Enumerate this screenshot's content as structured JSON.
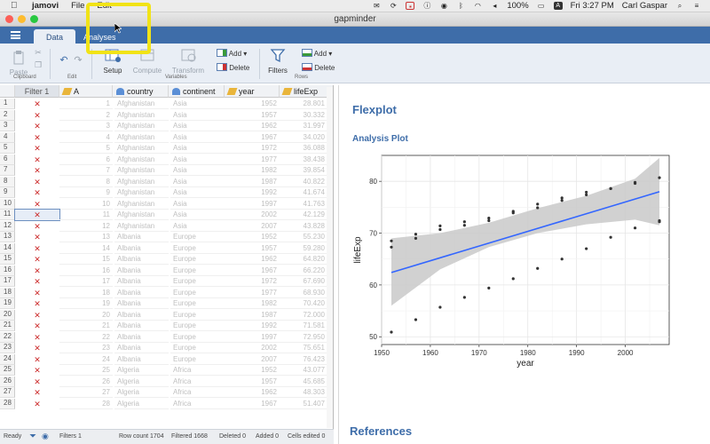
{
  "menubar": {
    "app": "jamovi",
    "items": [
      "File",
      "Edit"
    ],
    "battery": "100%",
    "clock": "Fri 3:27 PM",
    "user": "Carl Gaspar"
  },
  "window": {
    "title": "gapminder"
  },
  "tabs": [
    {
      "label": "Data",
      "active": true
    },
    {
      "label": "Analyses",
      "active": false
    }
  ],
  "ribbon": {
    "paste": "Paste",
    "clipboard_group": "Clipboard",
    "edit_group": "Edit",
    "setup": "Setup",
    "compute": "Compute",
    "transform": "Transform",
    "add": "Add",
    "delete": "Delete",
    "variables_group": "Variables",
    "filters": "Filters",
    "rows_add": "Add",
    "rows_delete": "Delete",
    "rows_group": "Rows"
  },
  "sheet": {
    "columns": [
      "Filter 1",
      "A",
      "country",
      "continent",
      "year",
      "lifeExp"
    ],
    "rows": [
      {
        "n": "1",
        "a": "1",
        "country": "Afghanistan",
        "continent": "Asia",
        "year": "1952",
        "life": "28.801"
      },
      {
        "n": "2",
        "a": "2",
        "country": "Afghanistan",
        "continent": "Asia",
        "year": "1957",
        "life": "30.332"
      },
      {
        "n": "3",
        "a": "3",
        "country": "Afghanistan",
        "continent": "Asia",
        "year": "1962",
        "life": "31.997"
      },
      {
        "n": "4",
        "a": "4",
        "country": "Afghanistan",
        "continent": "Asia",
        "year": "1967",
        "life": "34.020"
      },
      {
        "n": "5",
        "a": "5",
        "country": "Afghanistan",
        "continent": "Asia",
        "year": "1972",
        "life": "36.088"
      },
      {
        "n": "6",
        "a": "6",
        "country": "Afghanistan",
        "continent": "Asia",
        "year": "1977",
        "life": "38.438"
      },
      {
        "n": "7",
        "a": "7",
        "country": "Afghanistan",
        "continent": "Asia",
        "year": "1982",
        "life": "39.854"
      },
      {
        "n": "8",
        "a": "8",
        "country": "Afghanistan",
        "continent": "Asia",
        "year": "1987",
        "life": "40.822"
      },
      {
        "n": "9",
        "a": "9",
        "country": "Afghanistan",
        "continent": "Asia",
        "year": "1992",
        "life": "41.674"
      },
      {
        "n": "10",
        "a": "10",
        "country": "Afghanistan",
        "continent": "Asia",
        "year": "1997",
        "life": "41.763"
      },
      {
        "n": "11",
        "a": "11",
        "country": "Afghanistan",
        "continent": "Asia",
        "year": "2002",
        "life": "42.129"
      },
      {
        "n": "12",
        "a": "12",
        "country": "Afghanistan",
        "continent": "Asia",
        "year": "2007",
        "life": "43.828"
      },
      {
        "n": "13",
        "a": "13",
        "country": "Albania",
        "continent": "Europe",
        "year": "1952",
        "life": "55.230"
      },
      {
        "n": "14",
        "a": "14",
        "country": "Albania",
        "continent": "Europe",
        "year": "1957",
        "life": "59.280"
      },
      {
        "n": "15",
        "a": "15",
        "country": "Albania",
        "continent": "Europe",
        "year": "1962",
        "life": "64.820"
      },
      {
        "n": "16",
        "a": "16",
        "country": "Albania",
        "continent": "Europe",
        "year": "1967",
        "life": "66.220"
      },
      {
        "n": "17",
        "a": "17",
        "country": "Albania",
        "continent": "Europe",
        "year": "1972",
        "life": "67.690"
      },
      {
        "n": "18",
        "a": "18",
        "country": "Albania",
        "continent": "Europe",
        "year": "1977",
        "life": "68.930"
      },
      {
        "n": "19",
        "a": "19",
        "country": "Albania",
        "continent": "Europe",
        "year": "1982",
        "life": "70.420"
      },
      {
        "n": "20",
        "a": "20",
        "country": "Albania",
        "continent": "Europe",
        "year": "1987",
        "life": "72.000"
      },
      {
        "n": "21",
        "a": "21",
        "country": "Albania",
        "continent": "Europe",
        "year": "1992",
        "life": "71.581"
      },
      {
        "n": "22",
        "a": "22",
        "country": "Albania",
        "continent": "Europe",
        "year": "1997",
        "life": "72.950"
      },
      {
        "n": "23",
        "a": "23",
        "country": "Albania",
        "continent": "Europe",
        "year": "2002",
        "life": "75.651"
      },
      {
        "n": "24",
        "a": "24",
        "country": "Albania",
        "continent": "Europe",
        "year": "2007",
        "life": "76.423"
      },
      {
        "n": "25",
        "a": "25",
        "country": "Algeria",
        "continent": "Africa",
        "year": "1952",
        "life": "43.077"
      },
      {
        "n": "26",
        "a": "26",
        "country": "Algeria",
        "continent": "Africa",
        "year": "1957",
        "life": "45.685"
      },
      {
        "n": "27",
        "a": "27",
        "country": "Algeria",
        "continent": "Africa",
        "year": "1962",
        "life": "48.303"
      },
      {
        "n": "28",
        "a": "28",
        "country": "Algeria",
        "continent": "Africa",
        "year": "1967",
        "life": "51.407"
      }
    ],
    "selected_row": "11"
  },
  "status": {
    "ready": "Ready",
    "filters": "Filters 1",
    "row_count": "Row count 1704",
    "filtered": "Filtered 1668",
    "deleted": "Deleted 0",
    "added": "Added 0",
    "cells_edited": "Cells edited 0"
  },
  "results": {
    "title": "Flexplot",
    "subtitle": "Analysis Plot",
    "references": "References"
  },
  "chart_data": {
    "type": "scatter",
    "xlabel": "year",
    "ylabel": "lifeExp",
    "xlim": [
      1950,
      2009
    ],
    "ylim": [
      48.5,
      85
    ],
    "xticks": [
      1950,
      1960,
      1970,
      1980,
      1990,
      2000
    ],
    "yticks": [
      50,
      60,
      70,
      80
    ],
    "grid": true,
    "points": [
      [
        1952,
        50.9
      ],
      [
        1952,
        67.3
      ],
      [
        1952,
        68.5
      ],
      [
        1957,
        53.3
      ],
      [
        1957,
        69.0
      ],
      [
        1957,
        69.8
      ],
      [
        1962,
        55.7
      ],
      [
        1962,
        70.7
      ],
      [
        1962,
        71.4
      ],
      [
        1967,
        57.6
      ],
      [
        1967,
        71.5
      ],
      [
        1967,
        72.2
      ],
      [
        1972,
        59.4
      ],
      [
        1972,
        72.4
      ],
      [
        1972,
        72.9
      ],
      [
        1977,
        61.2
      ],
      [
        1977,
        73.9
      ],
      [
        1977,
        74.2
      ],
      [
        1982,
        63.2
      ],
      [
        1982,
        74.9
      ],
      [
        1982,
        75.6
      ],
      [
        1987,
        65.0
      ],
      [
        1987,
        76.3
      ],
      [
        1987,
        76.8
      ],
      [
        1992,
        67.0
      ],
      [
        1992,
        77.4
      ],
      [
        1992,
        77.9
      ],
      [
        1997,
        69.2
      ],
      [
        1997,
        78.6
      ],
      [
        1997,
        78.6
      ],
      [
        2002,
        71.0
      ],
      [
        2002,
        79.6
      ],
      [
        2002,
        79.8
      ],
      [
        2007,
        72.2
      ],
      [
        2007,
        72.4
      ],
      [
        2007,
        80.7
      ]
    ],
    "trend": {
      "x": [
        1952,
        2007
      ],
      "y": [
        62.4,
        78.0
      ]
    },
    "band_upper": [
      [
        1952,
        69.0
      ],
      [
        1962,
        70.0
      ],
      [
        1972,
        72.0
      ],
      [
        1982,
        74.8
      ],
      [
        1992,
        77.2
      ],
      [
        2002,
        80.5
      ],
      [
        2007,
        84.5
      ]
    ],
    "band_lower": [
      [
        1952,
        56.0
      ],
      [
        1962,
        63.0
      ],
      [
        1972,
        67.3
      ],
      [
        1982,
        70.0
      ],
      [
        1992,
        71.7
      ],
      [
        2002,
        72.6
      ],
      [
        2007,
        71.5
      ]
    ],
    "colors": {
      "line": "#3366ff",
      "band": "#c9c9c9",
      "points": "#333333",
      "panel": "#ffffff",
      "grid": "#e6e6e6"
    }
  }
}
